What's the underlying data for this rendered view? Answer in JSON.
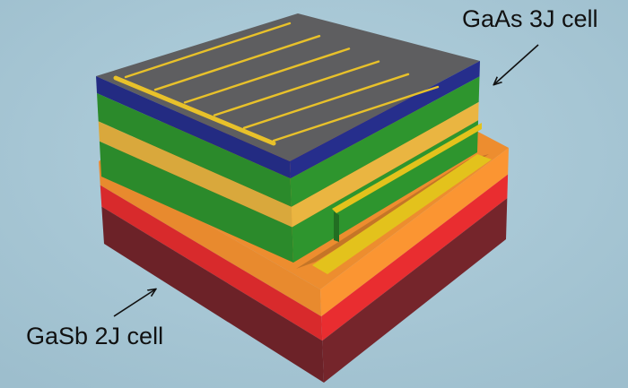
{
  "labels": {
    "top_cell": "GaAs 3J cell",
    "bottom_cell": "GaSb 2J cell"
  },
  "colors": {
    "background": "#a9c8d6",
    "contact_top": "#5e5e60",
    "window_layer": "#232b82",
    "subcell_green": "#2b8a2b",
    "subcell_yellow": "#d9a83c",
    "bonding_yellow": "#e3c21c",
    "gasb_orange": "#e88a2e",
    "gasb_red": "#d82a2c",
    "substrate": "#6c2228",
    "grid_finger": "#e8c12a"
  }
}
